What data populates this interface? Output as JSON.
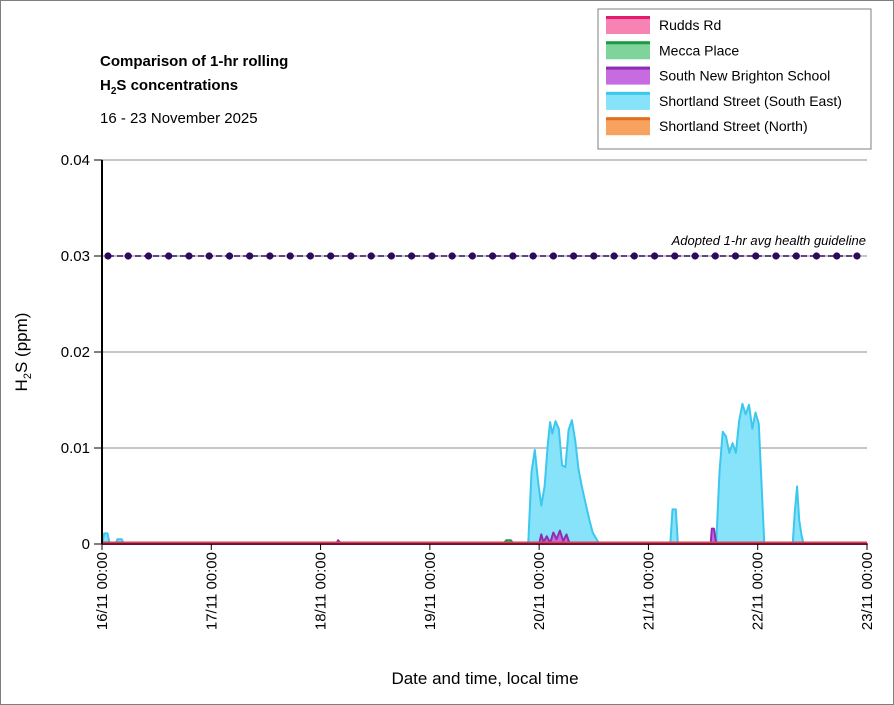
{
  "chart_data": {
    "type": "area",
    "title_line1": "Comparison of 1-hr rolling",
    "title_line2_prefix": "H",
    "title_line2_sub": "2",
    "title_line2_suffix": "S concentrations",
    "subtitle": "16 - 23 November 2025",
    "ylabel_prefix": "H",
    "ylabel_sub": "2",
    "ylabel_suffix": "S (ppm)",
    "xlabel": "Date and time, local time",
    "ylim": [
      0,
      0.04
    ],
    "y_ticks": [
      "0",
      "0.01",
      "0.02",
      "0.03",
      "0.04"
    ],
    "y_tick_values": [
      0,
      0.01,
      0.02,
      0.03,
      0.04
    ],
    "x_range_days": [
      0,
      7
    ],
    "x_ticks": [
      "16/11 00:00",
      "17/11 00:00",
      "18/11 00:00",
      "19/11 00:00",
      "20/11 00:00",
      "21/11 00:00",
      "22/11 00:00",
      "23/11 00:00"
    ],
    "grid": "horizontal",
    "legend_position": "top-right",
    "guideline": {
      "label": "Adopted 1-hr avg health guideline",
      "value": 0.03,
      "color": "#2e0a5c"
    },
    "series": [
      {
        "name": "Rudds Rd",
        "fill": "#f783b5",
        "stroke": "#e6196e",
        "points": [
          [
            0,
            0
          ],
          [
            7,
            0
          ]
        ]
      },
      {
        "name": "Mecca Place",
        "fill": "#7ed49a",
        "stroke": "#1e9a44",
        "points": [
          [
            3.67,
            0
          ],
          [
            3.7,
            0.0004
          ],
          [
            3.74,
            0.0004
          ],
          [
            3.77,
            0
          ]
        ]
      },
      {
        "name": "South New Brighton School",
        "fill": "#c76be0",
        "stroke": "#8b2fb0",
        "points": [
          [
            2.14,
            0
          ],
          [
            2.16,
            0.0004
          ],
          [
            2.19,
            0
          ],
          [
            4.0,
            0
          ],
          [
            4.02,
            0.001
          ],
          [
            4.04,
            0.0002
          ],
          [
            4.07,
            0.0008
          ],
          [
            4.1,
            0.0001
          ],
          [
            4.13,
            0.0012
          ],
          [
            4.16,
            0.0005
          ],
          [
            4.19,
            0.0014
          ],
          [
            4.22,
            0.0003
          ],
          [
            4.25,
            0.001
          ],
          [
            4.28,
            0
          ],
          [
            5.57,
            0
          ],
          [
            5.58,
            0.0016
          ],
          [
            5.6,
            0.0016
          ],
          [
            5.62,
            0
          ]
        ]
      },
      {
        "name": "Shortland Street (South East)",
        "fill": "#86e3fa",
        "stroke": "#3cc8ee",
        "points": [
          [
            0,
            0
          ],
          [
            0.02,
            0.0011
          ],
          [
            0.05,
            0.0011
          ],
          [
            0.07,
            0
          ],
          [
            0.13,
            0
          ],
          [
            0.14,
            0.0005
          ],
          [
            0.18,
            0.0005
          ],
          [
            0.2,
            0
          ],
          [
            3.9,
            0
          ],
          [
            3.93,
            0.0075
          ],
          [
            3.96,
            0.0098
          ],
          [
            3.99,
            0.0065
          ],
          [
            4.02,
            0.004
          ],
          [
            4.05,
            0.006
          ],
          [
            4.08,
            0.0105
          ],
          [
            4.1,
            0.0127
          ],
          [
            4.12,
            0.0115
          ],
          [
            4.15,
            0.0128
          ],
          [
            4.18,
            0.012
          ],
          [
            4.21,
            0.0082
          ],
          [
            4.24,
            0.008
          ],
          [
            4.27,
            0.0119
          ],
          [
            4.3,
            0.0129
          ],
          [
            4.33,
            0.0108
          ],
          [
            4.36,
            0.0078
          ],
          [
            4.39,
            0.006
          ],
          [
            4.42,
            0.0045
          ],
          [
            4.46,
            0.0025
          ],
          [
            4.49,
            0.0012
          ],
          [
            4.52,
            0.0006
          ],
          [
            4.55,
            0
          ],
          [
            5.2,
            0
          ],
          [
            5.22,
            0.0036
          ],
          [
            5.25,
            0.0036
          ],
          [
            5.27,
            0
          ],
          [
            5.62,
            0
          ],
          [
            5.65,
            0.0075
          ],
          [
            5.68,
            0.0117
          ],
          [
            5.71,
            0.0112
          ],
          [
            5.74,
            0.0095
          ],
          [
            5.77,
            0.0105
          ],
          [
            5.8,
            0.0095
          ],
          [
            5.83,
            0.0128
          ],
          [
            5.86,
            0.0146
          ],
          [
            5.89,
            0.0135
          ],
          [
            5.92,
            0.0145
          ],
          [
            5.95,
            0.012
          ],
          [
            5.98,
            0.0137
          ],
          [
            6.01,
            0.0125
          ],
          [
            6.06,
            0
          ],
          [
            6.32,
            0
          ],
          [
            6.34,
            0.0035
          ],
          [
            6.36,
            0.006
          ],
          [
            6.38,
            0.0025
          ],
          [
            6.4,
            0.001
          ],
          [
            6.42,
            0
          ]
        ]
      },
      {
        "name": "Shortland Street (North)",
        "fill": "#f8a260",
        "stroke": "#e07020",
        "points": [
          [
            0,
            0
          ],
          [
            7,
            0
          ]
        ]
      }
    ]
  }
}
